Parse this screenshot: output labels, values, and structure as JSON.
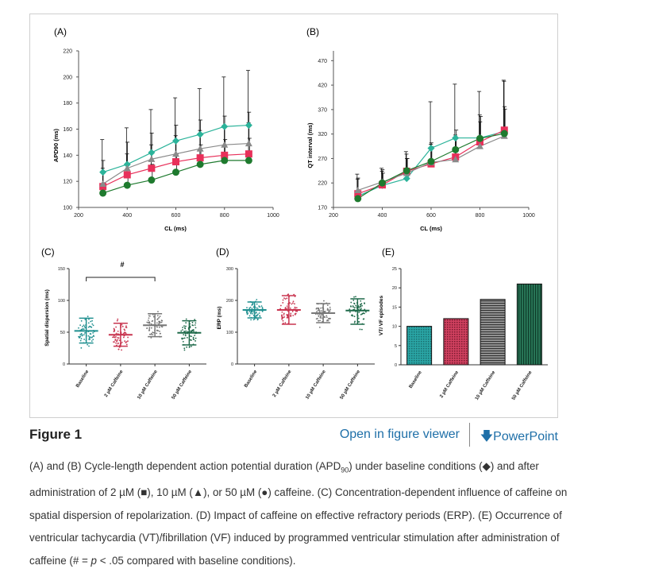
{
  "figure": {
    "panels": {
      "A": {
        "label": "(A)",
        "xlabel": "CL (ms)",
        "ylabel": "APD90 (ms)"
      },
      "B": {
        "label": "(B)",
        "xlabel": "CL (ms)",
        "ylabel": "QT interval (ms)"
      },
      "C": {
        "label": "(C)",
        "ylabel": "Spatial dispersion (ms)",
        "significance": "#"
      },
      "D": {
        "label": "(D)",
        "ylabel": "ERP (ms)"
      },
      "E": {
        "label": "(E)",
        "ylabel": "VT/ VF episodes"
      }
    }
  },
  "chart_data": [
    {
      "panel": "A",
      "type": "line",
      "xlabel": "CL (ms)",
      "ylabel": "APD90 (ms)",
      "xlim": [
        200,
        1000
      ],
      "ylim": [
        100,
        220
      ],
      "xticks": [
        200,
        400,
        600,
        800,
        1000
      ],
      "yticks": [
        100,
        120,
        140,
        160,
        180,
        200,
        220
      ],
      "x": [
        300,
        400,
        500,
        600,
        700,
        800,
        900
      ],
      "series": [
        {
          "name": "Baseline",
          "marker": "diamond",
          "color": "#2bb39a",
          "values": [
            127,
            133,
            142,
            151,
            156,
            162,
            163
          ],
          "err": [
            25,
            28,
            33,
            33,
            35,
            38,
            42
          ]
        },
        {
          "name": "2 µM Caffeine",
          "marker": "square",
          "color": "#e8305a",
          "values": [
            116,
            125,
            130,
            135,
            138,
            140,
            141
          ],
          "err": [
            14,
            16,
            18,
            20,
            21,
            23,
            24
          ]
        },
        {
          "name": "10 µM Caffeine",
          "marker": "triangle",
          "color": "#8a8a8a",
          "values": [
            118,
            130,
            137,
            141,
            145,
            148,
            149
          ],
          "err": [
            18,
            20,
            20,
            22,
            22,
            22,
            24
          ]
        },
        {
          "name": "50 µM Caffeine",
          "marker": "circle",
          "color": "#1e7a2e",
          "values": [
            111,
            117,
            121,
            127,
            133,
            136,
            136
          ],
          "err": [
            8,
            10,
            12,
            14,
            15,
            16,
            17
          ]
        }
      ]
    },
    {
      "panel": "B",
      "type": "line",
      "xlabel": "CL (ms)",
      "ylabel": "QT interval (ms)",
      "xlim": [
        200,
        1000
      ],
      "ylim": [
        170,
        490
      ],
      "xticks": [
        200,
        400,
        600,
        800,
        1000
      ],
      "yticks": [
        170,
        220,
        270,
        320,
        370,
        420,
        470
      ],
      "x": [
        300,
        400,
        500,
        600,
        700,
        800,
        900
      ],
      "series": [
        {
          "name": "Baseline",
          "marker": "diamond",
          "color": "#2bb39a",
          "values": [
            193,
            215,
            229,
            291,
            312,
            312,
            325
          ],
          "err": [
            45,
            35,
            55,
            95,
            110,
            95,
            105
          ]
        },
        {
          "name": "2 µM Caffeine",
          "marker": "square",
          "color": "#e8305a",
          "values": [
            198,
            216,
            244,
            259,
            273,
            304,
            328
          ],
          "err": [
            30,
            28,
            35,
            40,
            45,
            55,
            100
          ]
        },
        {
          "name": "10 µM Caffeine",
          "marker": "triangle",
          "color": "#8a8a8a",
          "values": [
            205,
            222,
            240,
            262,
            268,
            295,
            316
          ],
          "err": [
            25,
            25,
            30,
            40,
            45,
            50,
            60
          ]
        },
        {
          "name": "50 µM Caffeine",
          "marker": "circle",
          "color": "#1e7a2e",
          "values": [
            188,
            220,
            245,
            264,
            288,
            311,
            321
          ],
          "err": [
            15,
            20,
            25,
            30,
            40,
            45,
            50
          ]
        }
      ]
    },
    {
      "panel": "C",
      "type": "scatter",
      "ylabel": "Spatial dispersion (ms)",
      "ylim": [
        0,
        150
      ],
      "yticks": [
        0,
        50,
        100,
        150
      ],
      "categories": [
        "Baseline",
        "2 µM Caffeine",
        "10 µM Caffeine",
        "50 µM Caffeine"
      ],
      "colors": [
        "#1f8f8f",
        "#c8344f",
        "#777777",
        "#1f6a4a"
      ],
      "mean": [
        52,
        46,
        61,
        49
      ],
      "sd_low": [
        33,
        28,
        43,
        30
      ],
      "sd_high": [
        72,
        64,
        79,
        68
      ],
      "significance": {
        "label": "#",
        "between": [
          "Baseline",
          "10 µM Caffeine"
        ]
      }
    },
    {
      "panel": "D",
      "type": "scatter",
      "ylabel": "ERP (ms)",
      "ylim": [
        0,
        300
      ],
      "yticks": [
        0,
        100,
        200,
        300
      ],
      "categories": [
        "Baseline",
        "2 µM Caffeine",
        "10 µM Caffeine",
        "50 µM Caffeine"
      ],
      "colors": [
        "#1f8f8f",
        "#c8344f",
        "#777777",
        "#1f6a4a"
      ],
      "mean": [
        170,
        170,
        160,
        168
      ],
      "sd_low": [
        145,
        125,
        130,
        125
      ],
      "sd_high": [
        195,
        215,
        190,
        205
      ]
    },
    {
      "panel": "E",
      "type": "bar",
      "ylabel": "VT/ VF episodes",
      "ylim": [
        0,
        25
      ],
      "yticks": [
        0,
        5,
        10,
        15,
        20,
        25
      ],
      "categories": [
        "Baseline",
        "2 µM Caffeine",
        "10 µM Caffeine",
        "50 µM Caffeine"
      ],
      "values": [
        10,
        12,
        17,
        21
      ],
      "colors": [
        "#2aa6a6",
        "#c8344f",
        "#888888",
        "#1f6a4a"
      ]
    }
  ],
  "title_row": {
    "title": "Figure 1",
    "viewer_link": "Open in figure viewer",
    "ppt_link": "PowerPoint"
  },
  "caption": {
    "p1": "(A) and (B) Cycle-length dependent action potential duration (APD",
    "p1_sub": "90",
    "p2": ") under baseline conditions (◆) and after administration of 2 µM (■), 10 µM (▲), or 50 µM (●) caffeine. (C) Concentration-dependent influence of caffeine on spatial dispersion of repolarization. (D) Impact of caffeine on effective refractory periods (ERP). (E) Occurrence of ventricular tachycardia (VT)/fibrillation (VF) induced by programmed ventricular stimulation after administration of caffeine (# = ",
    "p_italic": "p",
    "p3": " < .05 compared with baseline conditions)."
  },
  "colors": {
    "link": "#1e6fa8"
  }
}
